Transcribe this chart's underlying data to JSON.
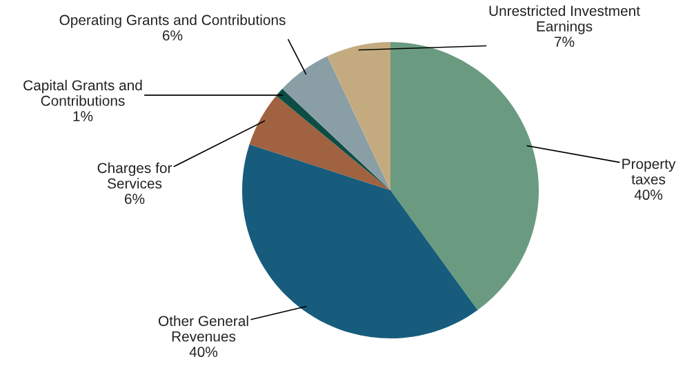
{
  "chart_data": {
    "type": "pie",
    "categories": [
      "Property\ntaxes",
      "Other General\nRevenues",
      "Charges for\nServices",
      "Capital Grants and\nContributions",
      "Operating Grants and Contributions",
      "Unrestricted Investment\nEarnings"
    ],
    "values": [
      40,
      40,
      6,
      1,
      6,
      7
    ],
    "colors": [
      "#6a9b80",
      "#175c7c",
      "#a06240",
      "#0d4d45",
      "#8a9fa5",
      "#c4ab7f"
    ],
    "value_labels": [
      "40%",
      "40%",
      "6%",
      "1%",
      "6%",
      "7%"
    ]
  }
}
